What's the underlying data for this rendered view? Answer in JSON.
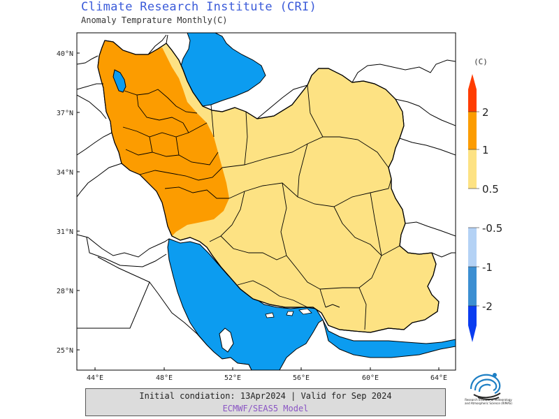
{
  "header": {
    "title": "Climate Research Institute (CRI)",
    "subtitle": "Anomaly Temprature Monthly(C)"
  },
  "map": {
    "lat_labels": [
      "40°N",
      "37°N",
      "34°N",
      "31°N",
      "28°N",
      "25°N"
    ],
    "lon_labels": [
      "44°E",
      "48°E",
      "52°E",
      "56°E",
      "60°E",
      "64°E"
    ],
    "lon_range": [
      43,
      65
    ],
    "lat_range": [
      24,
      41
    ],
    "colors": {
      "water": "#0c9cf0",
      "land_outside": "#ffffff",
      "anomaly_0_5_to_1": "#fde283",
      "anomaly_1_to_2": "#fc9c00",
      "border": "#000000"
    }
  },
  "legend": {
    "unit": "(C)",
    "positive_labels": [
      "2",
      "1",
      "0.5"
    ],
    "negative_labels": [
      "-0.5",
      "-1",
      "-2"
    ],
    "colors": {
      "gt2": "#ff3c00",
      "1_2": "#fc9c00",
      "0_5_1": "#fde283",
      "neg0_5_1": "#b4d2f5",
      "neg1_2": "#3c8fd2",
      "lt_neg2": "#0a3cf0"
    }
  },
  "footer": {
    "line1": "Initial condiation: 13Apr2024 | Valid for Sep 2024",
    "line2": "ECMWF/SEAS5 Model"
  },
  "logo": {
    "icon": "institute-swirl-logo-icon",
    "text": "Research Institute of Meteorology and Atmospheric Science (RIMAS)"
  }
}
